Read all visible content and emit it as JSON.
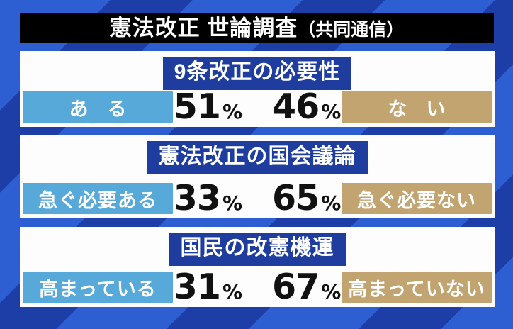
{
  "title": {
    "main": "憲法改正 世論調査",
    "suffix": "（共同通信）"
  },
  "unit_suffix": "%",
  "chart_data": {
    "type": "table",
    "title": "憲法改正 世論調査（共同通信）",
    "source": "共同通信",
    "rows": [
      {
        "question": "9条改正の必要性",
        "options": [
          {
            "label": "ある",
            "pct": 51
          },
          {
            "label": "ない",
            "pct": 46
          }
        ]
      },
      {
        "question": "憲法改正の国会議論",
        "options": [
          {
            "label": "急ぐ必要ある",
            "pct": 33
          },
          {
            "label": "急ぐ必要ない",
            "pct": 65
          }
        ]
      },
      {
        "question": "国民の改憲機運",
        "options": [
          {
            "label": "高まっている",
            "pct": 31
          },
          {
            "label": "高まっていない",
            "pct": 67
          }
        ]
      }
    ]
  },
  "colors": {
    "stripe_light": "#2d5fd2",
    "stripe_dark": "#1c3ea6",
    "banner_bg": "#000000",
    "panel_bg": "#fdfdfe",
    "heading_bg": "#1e3d9e",
    "left_label_bg": "#57a9d9",
    "right_label_bg": "#c1a470",
    "label_text": "#ffffff",
    "value_text": "#111111"
  }
}
